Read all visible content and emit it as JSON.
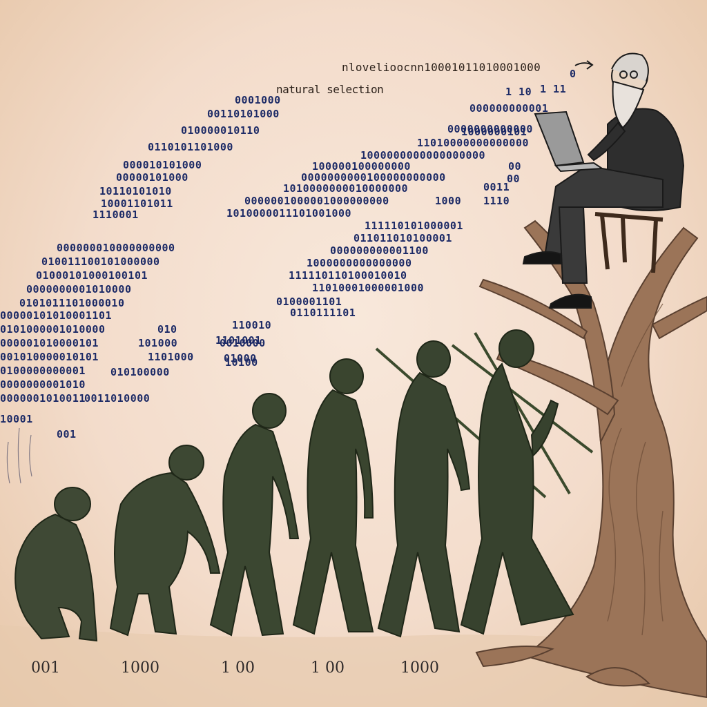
{
  "top_caption": "nlovelioocnn10001011010001000",
  "natural_selection_caption": "natural selection",
  "binary_left": [
    "0001000",
    "00110101000",
    "010000010110",
    "0110101101000",
    "000010101000",
    "00000101000",
    "10110101010",
    "10001101011",
    "1110001",
    "000000010000000000",
    "010011100101000000",
    "01000101000100101",
    "0000000001010000",
    "0101011101000010",
    "00000101010001101",
    "0101000001010000",
    "000001010000101",
    "001010000010101",
    "0100000000001",
    "0000000001010",
    "0000001010011",
    "10001",
    "001"
  ],
  "binary_mid_left": [
    "010",
    "101000",
    "1101000",
    "010100000",
    "0011010000",
    "0010000",
    "01000"
  ],
  "binary_right": [
    "1 10",
    "000000000001",
    "0000000000000",
    "11010000000000000",
    "1000000000000000000",
    "100000100000000",
    "0000000000100000000000",
    "1010000000010000000",
    "0000001000001000000000",
    "1010000011101001000",
    "111110101000001",
    "011011010100001",
    "000000000001100",
    "1000000000000000",
    "111110110100010010",
    "11010001000001000",
    "0100001101",
    "0110111101",
    "110010",
    "1101001",
    "10100"
  ],
  "binary_far_right": [
    "1  11",
    "0",
    "1000000101",
    "00",
    "00",
    "0011",
    "1110",
    "1000"
  ],
  "bottom_labels": [
    "001",
    "1000",
    "1 00",
    "1 00",
    "1000"
  ]
}
